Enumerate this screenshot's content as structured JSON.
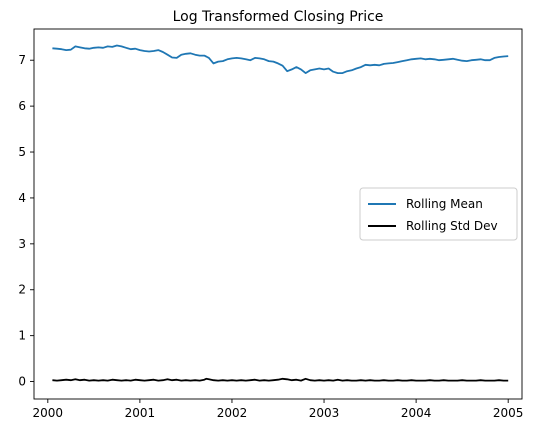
{
  "chart_data": {
    "type": "line",
    "title": "Log Transformed Closing Price",
    "xlabel": "",
    "ylabel": "",
    "xlim": [
      1999.85,
      2005.15
    ],
    "ylim": [
      -0.38,
      7.68
    ],
    "x_ticks": [
      2000,
      2001,
      2002,
      2003,
      2004,
      2005
    ],
    "x_tick_labels": [
      "2000",
      "2001",
      "2002",
      "2003",
      "2004",
      "2005"
    ],
    "y_ticks": [
      0,
      1,
      2,
      3,
      4,
      5,
      6,
      7
    ],
    "y_tick_labels": [
      "0",
      "1",
      "2",
      "3",
      "4",
      "5",
      "6",
      "7"
    ],
    "grid": false,
    "legend_placement": "center-right",
    "series": [
      {
        "name": "Rolling Mean",
        "color": "#1f77b4",
        "x": [
          2000.05,
          2000.1,
          2000.15,
          2000.2,
          2000.25,
          2000.3,
          2000.35,
          2000.4,
          2000.45,
          2000.5,
          2000.55,
          2000.6,
          2000.65,
          2000.7,
          2000.75,
          2000.8,
          2000.85,
          2000.9,
          2000.95,
          2001.0,
          2001.05,
          2001.1,
          2001.15,
          2001.2,
          2001.25,
          2001.3,
          2001.35,
          2001.4,
          2001.45,
          2001.5,
          2001.55,
          2001.6,
          2001.65,
          2001.7,
          2001.72,
          2001.75,
          2001.8,
          2001.85,
          2001.9,
          2001.95,
          2002.0,
          2002.05,
          2002.1,
          2002.15,
          2002.2,
          2002.25,
          2002.3,
          2002.35,
          2002.4,
          2002.45,
          2002.5,
          2002.55,
          2002.6,
          2002.65,
          2002.7,
          2002.75,
          2002.8,
          2002.85,
          2002.9,
          2002.95,
          2003.0,
          2003.05,
          2003.1,
          2003.15,
          2003.2,
          2003.25,
          2003.3,
          2003.35,
          2003.4,
          2003.45,
          2003.5,
          2003.55,
          2003.6,
          2003.65,
          2003.7,
          2003.75,
          2003.8,
          2003.85,
          2003.9,
          2003.95,
          2004.0,
          2004.05,
          2004.1,
          2004.15,
          2004.2,
          2004.25,
          2004.3,
          2004.35,
          2004.4,
          2004.45,
          2004.5,
          2004.55,
          2004.6,
          2004.65,
          2004.7,
          2004.75,
          2004.8,
          2004.85,
          2004.9,
          2004.95,
          2005.0
        ],
        "y": [
          7.26,
          7.25,
          7.24,
          7.22,
          7.23,
          7.3,
          7.28,
          7.26,
          7.25,
          7.27,
          7.28,
          7.27,
          7.3,
          7.29,
          7.32,
          7.3,
          7.27,
          7.24,
          7.25,
          7.22,
          7.2,
          7.19,
          7.2,
          7.22,
          7.18,
          7.12,
          7.06,
          7.05,
          7.12,
          7.14,
          7.15,
          7.12,
          7.1,
          7.1,
          7.08,
          7.05,
          6.93,
          6.97,
          6.98,
          7.02,
          7.04,
          7.05,
          7.04,
          7.02,
          7.0,
          7.05,
          7.04,
          7.02,
          6.98,
          6.97,
          6.93,
          6.88,
          6.76,
          6.8,
          6.85,
          6.8,
          6.72,
          6.78,
          6.8,
          6.82,
          6.8,
          6.82,
          6.75,
          6.72,
          6.72,
          6.76,
          6.78,
          6.82,
          6.85,
          6.9,
          6.89,
          6.9,
          6.89,
          6.92,
          6.93,
          6.94,
          6.96,
          6.98,
          7.0,
          7.02,
          7.03,
          7.04,
          7.02,
          7.03,
          7.02,
          7.0,
          7.01,
          7.02,
          7.03,
          7.01,
          6.99,
          6.98,
          7.0,
          7.01,
          7.02,
          7.0,
          7.0,
          7.05,
          7.07,
          7.08,
          7.09
        ]
      },
      {
        "name": "Rolling Std Dev",
        "color": "#000000",
        "x": [
          2000.05,
          2000.1,
          2000.15,
          2000.2,
          2000.25,
          2000.3,
          2000.35,
          2000.4,
          2000.45,
          2000.5,
          2000.55,
          2000.6,
          2000.65,
          2000.7,
          2000.75,
          2000.8,
          2000.85,
          2000.9,
          2000.95,
          2001.0,
          2001.05,
          2001.1,
          2001.15,
          2001.2,
          2001.25,
          2001.3,
          2001.35,
          2001.4,
          2001.45,
          2001.5,
          2001.55,
          2001.6,
          2001.65,
          2001.7,
          2001.72,
          2001.75,
          2001.8,
          2001.85,
          2001.9,
          2001.95,
          2002.0,
          2002.05,
          2002.1,
          2002.15,
          2002.2,
          2002.25,
          2002.3,
          2002.35,
          2002.4,
          2002.45,
          2002.5,
          2002.55,
          2002.6,
          2002.65,
          2002.7,
          2002.75,
          2002.8,
          2002.85,
          2002.9,
          2002.95,
          2003.0,
          2003.05,
          2003.1,
          2003.15,
          2003.2,
          2003.25,
          2003.3,
          2003.35,
          2003.4,
          2003.45,
          2003.5,
          2003.55,
          2003.6,
          2003.65,
          2003.7,
          2003.75,
          2003.8,
          2003.85,
          2003.9,
          2003.95,
          2004.0,
          2004.05,
          2004.1,
          2004.15,
          2004.2,
          2004.25,
          2004.3,
          2004.35,
          2004.4,
          2004.45,
          2004.5,
          2004.55,
          2004.6,
          2004.65,
          2004.7,
          2004.75,
          2004.8,
          2004.85,
          2004.9,
          2004.95,
          2005.0
        ],
        "y": [
          0.03,
          0.02,
          0.03,
          0.04,
          0.03,
          0.05,
          0.03,
          0.04,
          0.02,
          0.03,
          0.02,
          0.03,
          0.02,
          0.04,
          0.03,
          0.02,
          0.03,
          0.02,
          0.04,
          0.03,
          0.02,
          0.03,
          0.04,
          0.02,
          0.03,
          0.05,
          0.03,
          0.04,
          0.02,
          0.03,
          0.02,
          0.03,
          0.02,
          0.04,
          0.06,
          0.05,
          0.03,
          0.02,
          0.03,
          0.02,
          0.03,
          0.02,
          0.03,
          0.02,
          0.03,
          0.04,
          0.02,
          0.03,
          0.02,
          0.03,
          0.04,
          0.06,
          0.05,
          0.03,
          0.04,
          0.02,
          0.06,
          0.03,
          0.02,
          0.03,
          0.02,
          0.03,
          0.02,
          0.04,
          0.02,
          0.03,
          0.02,
          0.02,
          0.03,
          0.02,
          0.03,
          0.02,
          0.02,
          0.03,
          0.02,
          0.02,
          0.03,
          0.02,
          0.02,
          0.03,
          0.02,
          0.02,
          0.02,
          0.03,
          0.02,
          0.02,
          0.03,
          0.02,
          0.02,
          0.02,
          0.03,
          0.02,
          0.02,
          0.02,
          0.03,
          0.02,
          0.02,
          0.02,
          0.03,
          0.02,
          0.02
        ]
      }
    ]
  }
}
